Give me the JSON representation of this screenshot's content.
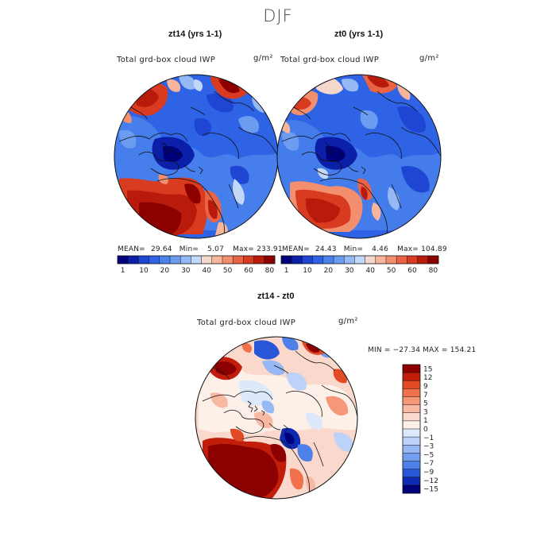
{
  "figure": {
    "title": "DJF"
  },
  "panels": [
    {
      "id": "zt14",
      "title": "zt14 (yrs 1-1)",
      "varname": "Total grd-box cloud IWP",
      "units": "g/m²",
      "stats": {
        "mean_label": "MEAN=",
        "mean": "29.64",
        "min_label": "Min=",
        "min": "5.07",
        "max_label": "Max=",
        "max": "233.91"
      }
    },
    {
      "id": "zt0",
      "title": "zt0 (yrs 1-1)",
      "varname": "Total grd-box cloud IWP",
      "units": "g/m²",
      "stats": {
        "mean_label": "MEAN=",
        "mean": "24.43",
        "min_label": "Min=",
        "min": "4.46",
        "max_label": "Max=",
        "max": "104.89"
      }
    },
    {
      "id": "diff",
      "title": "zt14 - zt0",
      "varname": "Total grd-box cloud IWP",
      "units": "g/m²",
      "stats": {
        "text": "MIN = −27.34  MAX = 154.21"
      }
    }
  ],
  "chart_data": [
    {
      "type": "heatmap",
      "title": "zt14 (yrs 1-1)",
      "projection": "north-polar-stereographic",
      "variable": "Total grd-box cloud IWP",
      "units": "g/m²",
      "mean": 29.64,
      "min": 5.07,
      "max": 233.91,
      "colorbar": {
        "orientation": "horizontal",
        "levels": [
          1,
          5,
          10,
          15,
          20,
          25,
          30,
          35,
          40,
          45,
          50,
          55,
          60,
          70,
          80
        ],
        "tick_labels": [
          "1",
          "10",
          "20",
          "30",
          "40",
          "50",
          "60",
          "80"
        ],
        "colors": [
          "#00007a",
          "#0b1fa8",
          "#1f45d3",
          "#2f63e6",
          "#4a82ec",
          "#6c9cf0",
          "#95b9f4",
          "#c3d7f8",
          "#f4d8cc",
          "#f7b59c",
          "#f38e6f",
          "#ea6344",
          "#d93b20",
          "#b81a0c",
          "#8c0000"
        ]
      },
      "regions": [
        {
          "name": "north-atlantic",
          "level": "high"
        },
        {
          "name": "north-pacific",
          "level": "high"
        },
        {
          "name": "arctic-basin",
          "level": "low"
        }
      ]
    },
    {
      "type": "heatmap",
      "title": "zt0 (yrs 1-1)",
      "projection": "north-polar-stereographic",
      "variable": "Total grd-box cloud IWP",
      "units": "g/m²",
      "mean": 24.43,
      "min": 4.46,
      "max": 104.89,
      "colorbar": {
        "orientation": "horizontal",
        "levels": [
          1,
          5,
          10,
          15,
          20,
          25,
          30,
          35,
          40,
          45,
          50,
          55,
          60,
          70,
          80
        ],
        "tick_labels": [
          "1",
          "10",
          "20",
          "30",
          "40",
          "50",
          "60",
          "80"
        ],
        "colors": [
          "#00007a",
          "#0b1fa8",
          "#1f45d3",
          "#2f63e6",
          "#4a82ec",
          "#6c9cf0",
          "#95b9f4",
          "#c3d7f8",
          "#f4d8cc",
          "#f7b59c",
          "#f38e6f",
          "#ea6344",
          "#d93b20",
          "#b81a0c",
          "#8c0000"
        ]
      },
      "regions": [
        {
          "name": "north-atlantic",
          "level": "high"
        },
        {
          "name": "north-pacific",
          "level": "moderate"
        },
        {
          "name": "arctic-basin",
          "level": "low"
        }
      ]
    },
    {
      "type": "heatmap",
      "title": "zt14 - zt0",
      "projection": "north-polar-stereographic",
      "variable": "Total grd-box cloud IWP",
      "units": "g/m²",
      "min": -27.34,
      "max": 154.21,
      "colorbar": {
        "orientation": "vertical",
        "levels": [
          -15,
          -12,
          -9,
          -7,
          -5,
          -3,
          -1,
          0,
          1,
          3,
          5,
          7,
          9,
          12,
          15
        ],
        "tick_labels": [
          "15",
          "12",
          "9",
          "7",
          "5",
          "3",
          "1",
          "0",
          "−1",
          "−3",
          "−5",
          "−7",
          "−9",
          "−12",
          "−15"
        ],
        "colors_top_to_bottom": [
          "#8c0000",
          "#c01d0a",
          "#e24a25",
          "#f0714b",
          "#f6977a",
          "#f8b9a3",
          "#fad8cb",
          "#fdf0e8",
          "#dde8fb",
          "#bcd2f8",
          "#97b8f4",
          "#739eef",
          "#4e80e9",
          "#2a57d8",
          "#0e2ab0",
          "#00007a"
        ]
      },
      "regions": [
        {
          "name": "north-atlantic",
          "level": "strong-positive"
        },
        {
          "name": "north-pacific",
          "level": "mixed"
        },
        {
          "name": "arctic-basin",
          "level": "near-zero"
        }
      ]
    }
  ]
}
